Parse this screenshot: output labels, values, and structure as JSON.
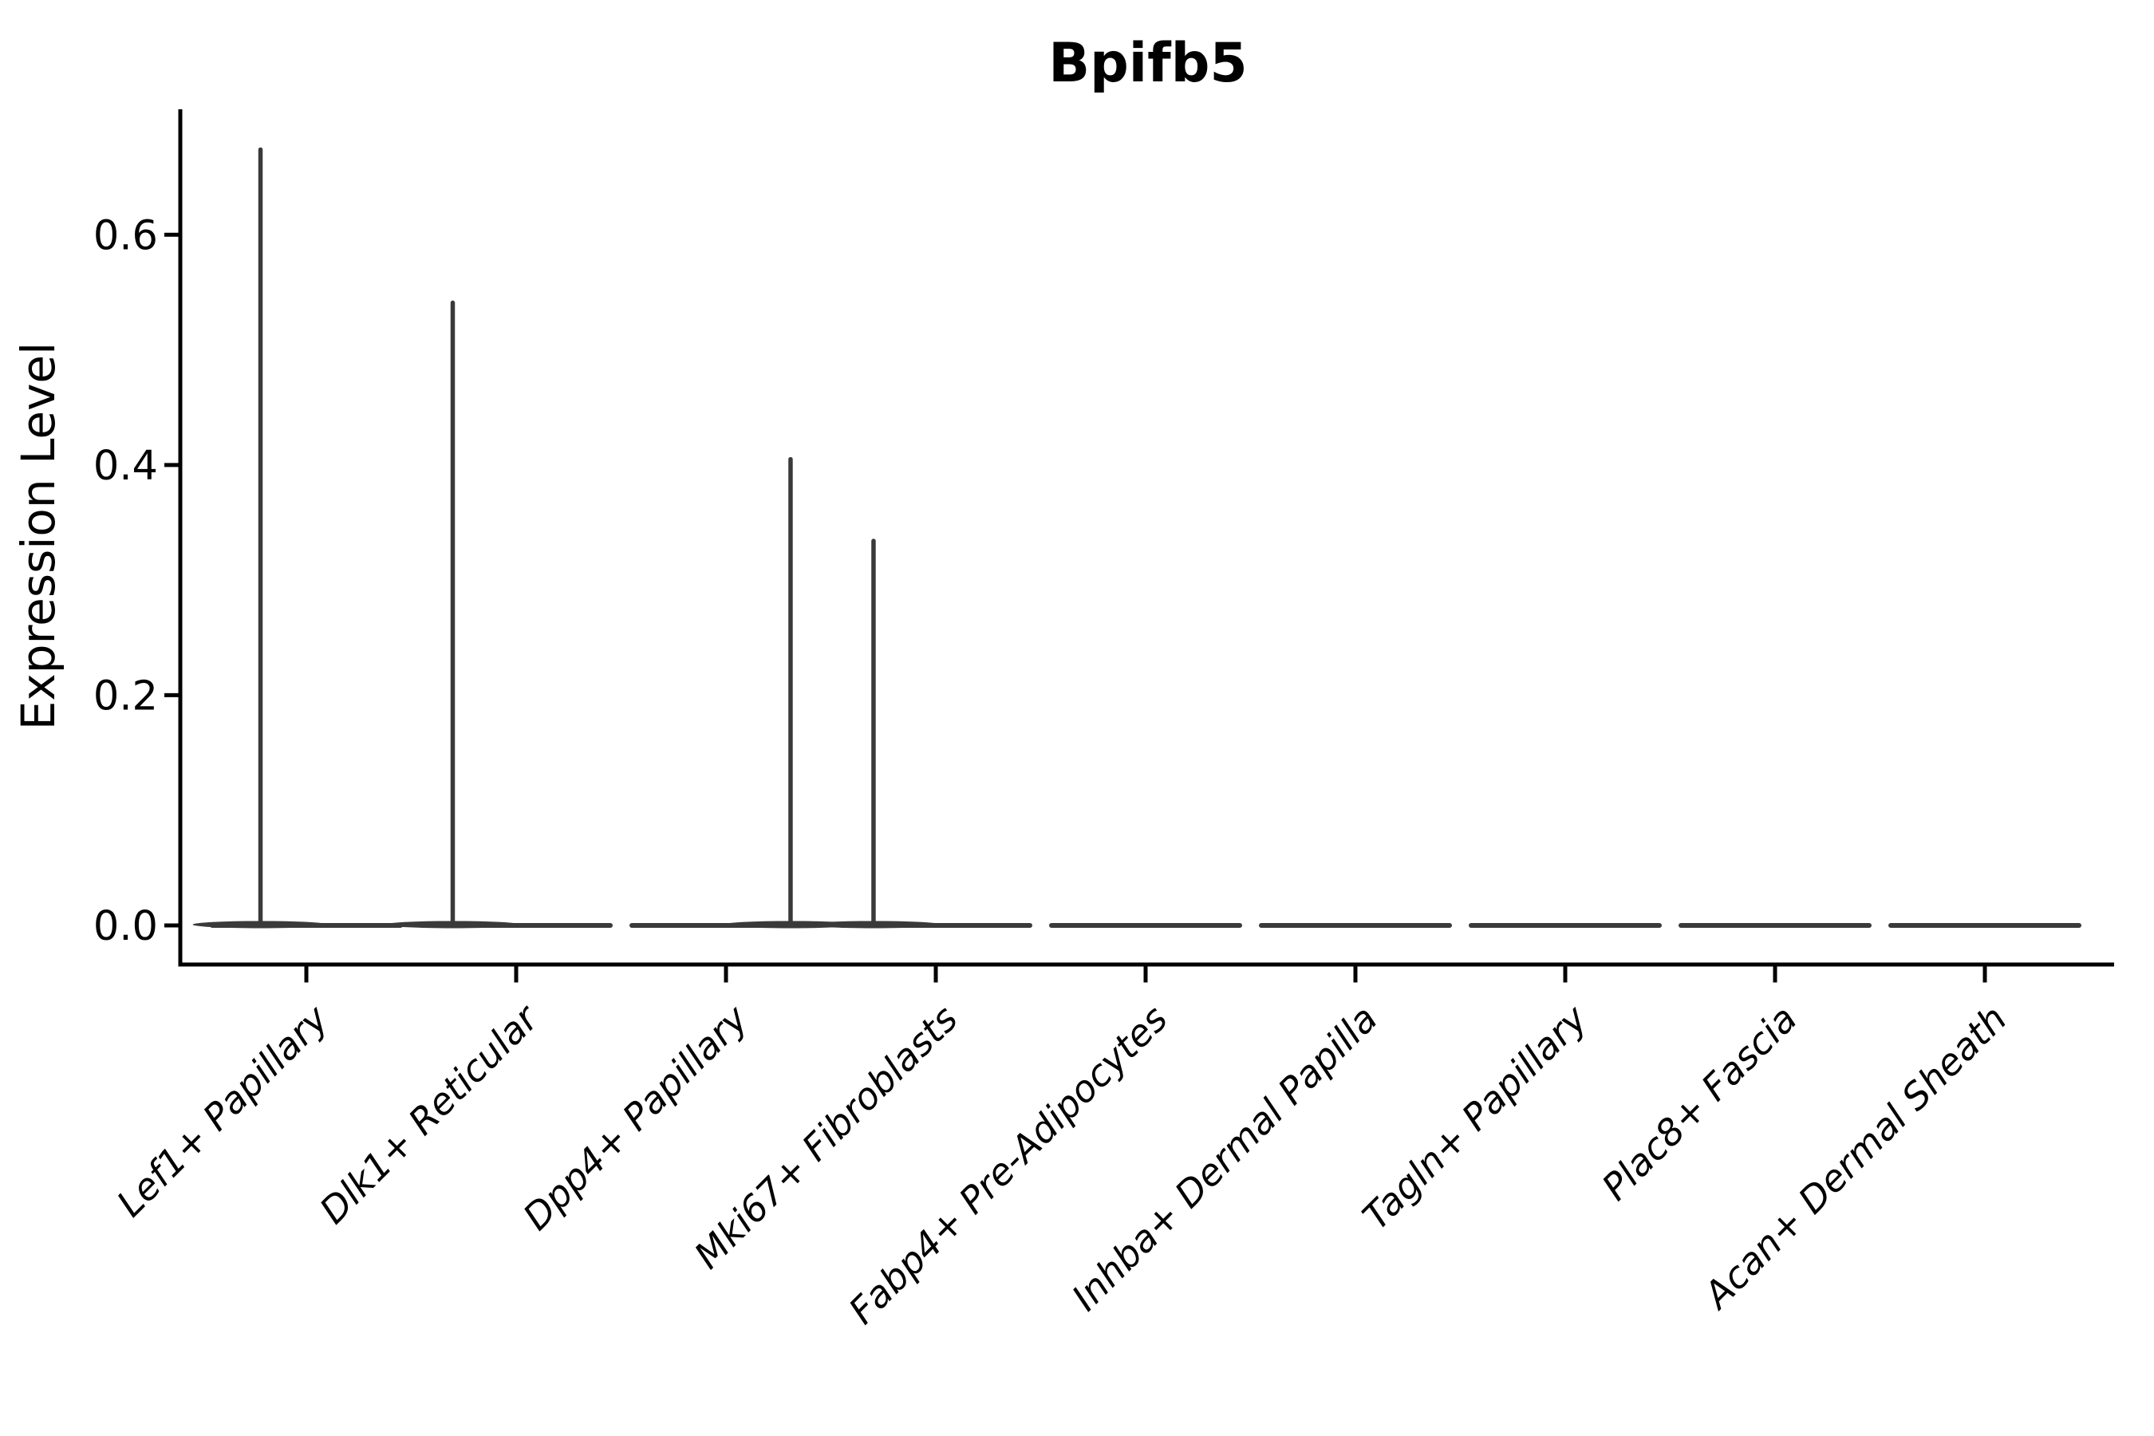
{
  "figure": {
    "background": "#ffffff"
  },
  "chart_data": {
    "type": "violin",
    "title": "Bpifb5",
    "ylabel": "Expression Level",
    "xlabel": "",
    "ylim": [
      -0.034,
      0.709
    ],
    "yticks": [
      0.0,
      0.2,
      0.4,
      0.6
    ],
    "ytick_labels": [
      "0.0",
      "0.2",
      "0.4",
      "0.6"
    ],
    "grid": false,
    "legend": "none",
    "axis_color": "#000000",
    "violin_color": "#3a3a3a",
    "categories": [
      "Lef1+ Papillary",
      "Dlk1+ Reticular",
      "Dpp4+ Papillary",
      "Mki67+ Fibroblasts",
      "Fabp4+ Pre-Adipocytes",
      "Inhba+ Dermal Papilla",
      "Tagln+ Papillary",
      "Plac8+ Fascia",
      "Acan+ Dermal Sheath"
    ],
    "violins": [
      {
        "category": "Lef1+ Papillary",
        "max_expression": 0.674,
        "spike_offset_frac": -0.475
      },
      {
        "category": "Dlk1+ Reticular",
        "max_expression": 0.541,
        "spike_offset_frac": -0.657
      },
      {
        "category": "Dpp4+ Papillary",
        "max_expression": 0.405,
        "spike_offset_frac": 0.669
      },
      {
        "category": "Mki67+ Fibroblasts",
        "max_expression": 0.334,
        "spike_offset_frac": -0.645
      },
      {
        "category": "Fabp4+ Pre-Adipocytes",
        "max_expression": 0.0,
        "spike_offset_frac": 0
      },
      {
        "category": "Inhba+ Dermal Papilla",
        "max_expression": 0.0,
        "spike_offset_frac": 0
      },
      {
        "category": "Tagln+ Papillary",
        "max_expression": 0.0,
        "spike_offset_frac": 0
      },
      {
        "category": "Plac8+ Fascia",
        "max_expression": 0.0,
        "spike_offset_frac": 0
      },
      {
        "category": "Acan+ Dermal Sheath",
        "max_expression": 0.0,
        "spike_offset_frac": 0
      }
    ]
  }
}
